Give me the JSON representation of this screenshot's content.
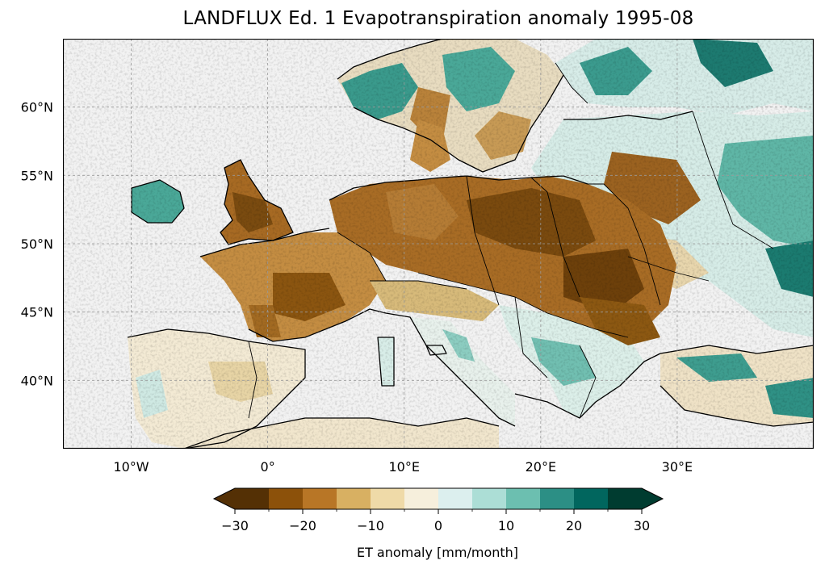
{
  "title": "LANDFLUX Ed. 1 Evapotranspiration anomaly 1995-08",
  "map": {
    "extent": {
      "lon": [
        -15,
        40
      ],
      "lat": [
        35,
        65
      ]
    },
    "ocean_color": "#f2f2f2",
    "gridlines": "dashed",
    "lon_ticks": [
      {
        "lon": -10,
        "label": "10°W"
      },
      {
        "lon": 0,
        "label": "0°"
      },
      {
        "lon": 10,
        "label": "10°E"
      },
      {
        "lon": 20,
        "label": "20°E"
      },
      {
        "lon": 30,
        "label": "30°E"
      }
    ],
    "lat_ticks": [
      {
        "lat": 60,
        "label": "60°N"
      },
      {
        "lat": 55,
        "label": "55°N"
      },
      {
        "lat": 50,
        "label": "50°N"
      },
      {
        "lat": 45,
        "label": "45°N"
      },
      {
        "lat": 40,
        "label": "40°N"
      }
    ]
  },
  "colorbar": {
    "label": "ET anomaly [mm/month]",
    "extend": "both",
    "bounds": [
      -30,
      -25,
      -20,
      -15,
      -10,
      -5,
      0,
      5,
      10,
      15,
      20,
      25,
      30
    ],
    "colors": [
      "#543005",
      "#8c510a",
      "#b87626",
      "#d8b062",
      "#efdaa8",
      "#f6efdc",
      "#dcefee",
      "#acded6",
      "#6cbfb0",
      "#2c8f85",
      "#01665e",
      "#003c30"
    ],
    "under_color": "#543005",
    "over_color": "#003c30",
    "tick_values": [
      -30,
      -20,
      -10,
      0,
      10,
      20,
      30
    ],
    "tick_labels": [
      "−30",
      "−20",
      "−10",
      "0",
      "10",
      "20",
      "30"
    ]
  }
}
